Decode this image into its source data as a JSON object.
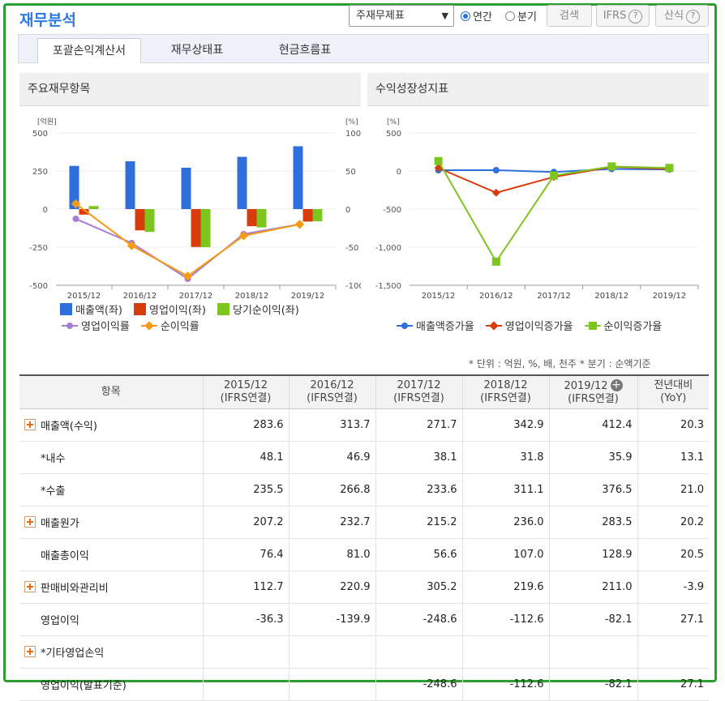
{
  "header": {
    "title": "재무분석",
    "statement_select": "주재무제표",
    "radio_annual": "연간",
    "radio_quarter": "분기",
    "search_button": "검색",
    "ifrs_button": "IFRS",
    "calc_button": "산식"
  },
  "tabs": [
    {
      "label": "포괄손익계산서",
      "active": true
    },
    {
      "label": "재무상태표",
      "active": false
    },
    {
      "label": "현금흐름표",
      "active": false
    }
  ],
  "left_panel_title": "주요재무항목",
  "right_panel_title": "수익성장성지표",
  "colors": {
    "sales": "#2f6fdb",
    "op_income": "#d83c0c",
    "net_income": "#7dc51f",
    "op_margin": "#a57fd6",
    "net_margin": "#f59a12",
    "frame": "#2ca02c",
    "negative": "#c81e1e",
    "title": "#2c7ae0"
  },
  "chart_data": [
    {
      "type": "bar",
      "title": "주요재무항목",
      "categories": [
        "2015/12",
        "2016/12",
        "2017/12",
        "2018/12",
        "2019/12"
      ],
      "y_left_unit": "[억원]",
      "y_right_unit": "[%]",
      "ylim_left": [
        -500,
        500
      ],
      "yticks_left": [
        "500",
        "250",
        "0",
        "-250",
        "-500"
      ],
      "ylim_right": [
        -100,
        100
      ],
      "yticks_right": [
        "100",
        "50",
        "0",
        "-50",
        "-100"
      ],
      "series": [
        {
          "name": "매출액(좌)",
          "axis": "left",
          "kind": "bar",
          "values": [
            283.6,
            313.7,
            271.7,
            342.9,
            412.4
          ]
        },
        {
          "name": "영업이익(좌)",
          "axis": "left",
          "kind": "bar",
          "values": [
            -36.3,
            -139.9,
            -248.6,
            -112.6,
            -82.1
          ]
        },
        {
          "name": "당기순이익(좌)",
          "axis": "left",
          "kind": "bar",
          "values": [
            20,
            -150,
            -250,
            -120,
            -80
          ]
        },
        {
          "name": "영업이익률",
          "axis": "right",
          "kind": "line",
          "values": [
            -12.8,
            -44.6,
            -91.5,
            -32.8,
            -19.9
          ]
        },
        {
          "name": "순이익률",
          "axis": "right",
          "kind": "line",
          "values": [
            7,
            -48,
            -88,
            -35,
            -20
          ]
        }
      ]
    },
    {
      "type": "line",
      "title": "수익성장성지표",
      "categories": [
        "2015/12",
        "2016/12",
        "2017/12",
        "2018/12",
        "2019/12"
      ],
      "y_unit": "[%]",
      "ylim": [
        -1500,
        500
      ],
      "yticks": [
        "500",
        "0",
        "-500",
        "-1,000",
        "-1,500"
      ],
      "series": [
        {
          "name": "매출액증가율",
          "values": [
            10,
            10.6,
            -13.4,
            26.2,
            20.3
          ]
        },
        {
          "name": "영업이익증가율",
          "values": [
            40,
            -285,
            -78,
            55,
            27
          ]
        },
        {
          "name": "순이익증가율",
          "values": [
            130,
            -1190,
            -60,
            60,
            40
          ]
        }
      ]
    }
  ],
  "unit_note": "* 단위 : 억원, %, 배, 천주    * 분기 : 순액기준",
  "table": {
    "headers": [
      {
        "line1": "항목",
        "line2": ""
      },
      {
        "line1": "2015/12",
        "line2": "(IFRS연결)"
      },
      {
        "line1": "2016/12",
        "line2": "(IFRS연결)"
      },
      {
        "line1": "2017/12",
        "line2": "(IFRS연결)"
      },
      {
        "line1": "2018/12",
        "line2": "(IFRS연결)"
      },
      {
        "line1": "2019/12",
        "line2": "(IFRS연결)"
      },
      {
        "line1": "전년대비",
        "line2": "(YoY)"
      }
    ],
    "rows": [
      {
        "label": "매출액(수익)",
        "expand": true,
        "indent": false,
        "values": [
          "283.6",
          "313.7",
          "271.7",
          "342.9",
          "412.4",
          "20.3"
        ]
      },
      {
        "label": "*내수",
        "expand": false,
        "indent": true,
        "values": [
          "48.1",
          "46.9",
          "38.1",
          "31.8",
          "35.9",
          "13.1"
        ]
      },
      {
        "label": "*수출",
        "expand": false,
        "indent": true,
        "values": [
          "235.5",
          "266.8",
          "233.6",
          "311.1",
          "376.5",
          "21.0"
        ]
      },
      {
        "label": "매출원가",
        "expand": true,
        "indent": false,
        "values": [
          "207.2",
          "232.7",
          "215.2",
          "236.0",
          "283.5",
          "20.2"
        ]
      },
      {
        "label": "매출총이익",
        "expand": false,
        "indent": true,
        "values": [
          "76.4",
          "81.0",
          "56.6",
          "107.0",
          "128.9",
          "20.5"
        ]
      },
      {
        "label": "판매비와관리비",
        "expand": true,
        "indent": false,
        "values": [
          "112.7",
          "220.9",
          "305.2",
          "219.6",
          "211.0",
          "-3.9"
        ]
      },
      {
        "label": "영업이익",
        "expand": false,
        "indent": true,
        "values": [
          "-36.3",
          "-139.9",
          "-248.6",
          "-112.6",
          "-82.1",
          "27.1"
        ]
      },
      {
        "label": "*기타영업손익",
        "expand": true,
        "indent": false,
        "values": [
          "",
          "",
          "",
          "",
          "",
          ""
        ]
      },
      {
        "label": "영업이익(발표기준)",
        "expand": false,
        "indent": true,
        "values": [
          "",
          "",
          "-248.6",
          "-112.6",
          "-82.1",
          "27.1"
        ]
      }
    ]
  }
}
